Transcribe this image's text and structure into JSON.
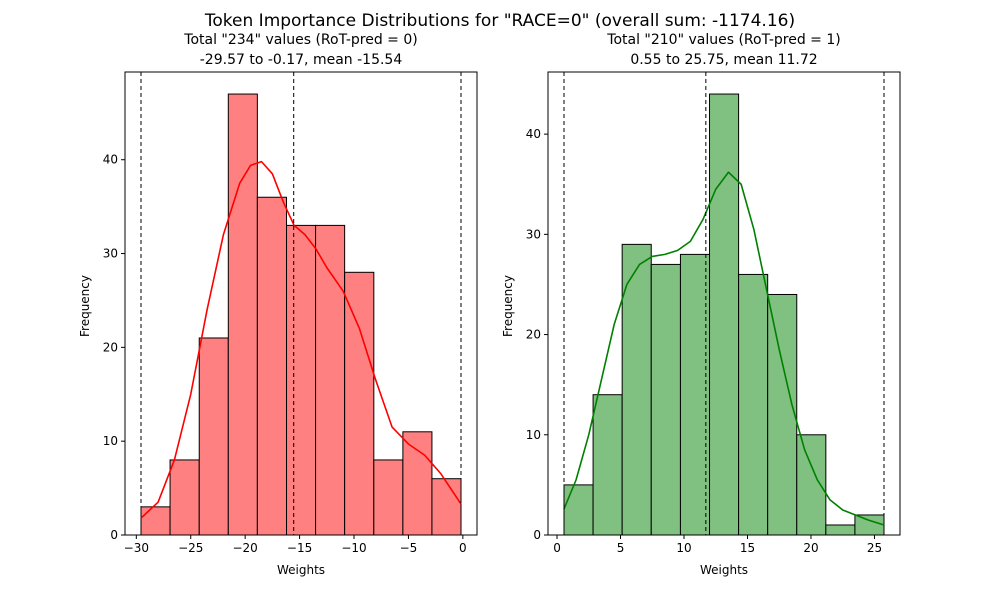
{
  "suptitle": "Token Importance Distributions for \"RACE=0\" (overall  sum: -1174.16)",
  "chart_data": [
    {
      "type": "bar",
      "subtype": "histogram-with-kde",
      "title_line1": "Total \"234\" values (RoT-pred = 0)",
      "title_line2": "-29.57 to -0.17, mean -15.54",
      "xlabel": "Weights",
      "ylabel": "Frequency",
      "xlim": [
        -31.04,
        1.3
      ],
      "ylim": [
        0,
        49.35
      ],
      "xticks": [
        -30,
        -25,
        -20,
        -15,
        -10,
        -5,
        0
      ],
      "yticks": [
        0,
        10,
        20,
        30,
        40
      ],
      "bar_color": "#ff8080",
      "kde_color": "#ff0000",
      "bins": [
        {
          "start": -29.57,
          "end": -26.9,
          "count": 3
        },
        {
          "start": -26.9,
          "end": -24.22,
          "count": 8
        },
        {
          "start": -24.22,
          "end": -21.55,
          "count": 21
        },
        {
          "start": -21.55,
          "end": -18.88,
          "count": 47
        },
        {
          "start": -18.88,
          "end": -16.2,
          "count": 36
        },
        {
          "start": -16.2,
          "end": -13.53,
          "count": 33
        },
        {
          "start": -13.53,
          "end": -10.86,
          "count": 33
        },
        {
          "start": -10.86,
          "end": -8.18,
          "count": 28
        },
        {
          "start": -8.18,
          "end": -5.51,
          "count": 8
        },
        {
          "start": -5.51,
          "end": -2.84,
          "count": 11
        },
        {
          "start": -2.84,
          "end": -0.17,
          "count": 6
        }
      ],
      "kde": [
        [
          -29.57,
          1.8
        ],
        [
          -28.0,
          3.5
        ],
        [
          -26.5,
          8.0
        ],
        [
          -25.0,
          15.0
        ],
        [
          -23.5,
          24.0
        ],
        [
          -22.0,
          32.0
        ],
        [
          -20.5,
          37.5
        ],
        [
          -19.5,
          39.4
        ],
        [
          -18.5,
          39.8
        ],
        [
          -17.5,
          38.5
        ],
        [
          -16.5,
          35.5
        ],
        [
          -15.5,
          33.0
        ],
        [
          -14.5,
          32.0
        ],
        [
          -13.5,
          30.5
        ],
        [
          -12.5,
          28.5
        ],
        [
          -11.0,
          26.0
        ],
        [
          -9.5,
          22.0
        ],
        [
          -8.0,
          16.5
        ],
        [
          -6.5,
          11.5
        ],
        [
          -5.0,
          9.7
        ],
        [
          -3.5,
          8.5
        ],
        [
          -2.0,
          6.5
        ],
        [
          -0.17,
          3.3
        ]
      ],
      "vlines": [
        -29.57,
        -15.54,
        -0.17
      ]
    },
    {
      "type": "bar",
      "subtype": "histogram-with-kde",
      "title_line1": "Total \"210\" values (RoT-pred = 1)",
      "title_line2": "0.55 to 25.75, mean 11.72",
      "xlabel": "Weights",
      "ylabel": "Frequency",
      "xlim": [
        -0.71,
        27.01
      ],
      "ylim": [
        0,
        46.2
      ],
      "xticks": [
        0,
        5,
        10,
        15,
        20,
        25
      ],
      "yticks": [
        0,
        10,
        20,
        30,
        40
      ],
      "bar_color": "#80c080",
      "kde_color": "#008000",
      "bins": [
        {
          "start": 0.55,
          "end": 2.84,
          "count": 5
        },
        {
          "start": 2.84,
          "end": 5.13,
          "count": 14
        },
        {
          "start": 5.13,
          "end": 7.42,
          "count": 29
        },
        {
          "start": 7.42,
          "end": 9.72,
          "count": 27
        },
        {
          "start": 9.72,
          "end": 12.01,
          "count": 28
        },
        {
          "start": 12.01,
          "end": 14.3,
          "count": 44
        },
        {
          "start": 14.3,
          "end": 16.59,
          "count": 26
        },
        {
          "start": 16.59,
          "end": 18.88,
          "count": 24
        },
        {
          "start": 18.88,
          "end": 21.17,
          "count": 10
        },
        {
          "start": 21.17,
          "end": 23.46,
          "count": 1
        },
        {
          "start": 23.46,
          "end": 25.75,
          "count": 2
        }
      ],
      "kde": [
        [
          0.55,
          2.6
        ],
        [
          1.5,
          5.5
        ],
        [
          2.5,
          10.0
        ],
        [
          3.5,
          15.5
        ],
        [
          4.5,
          21.0
        ],
        [
          5.5,
          25.0
        ],
        [
          6.5,
          27.0
        ],
        [
          7.5,
          27.8
        ],
        [
          8.5,
          28.0
        ],
        [
          9.5,
          28.4
        ],
        [
          10.5,
          29.3
        ],
        [
          11.5,
          31.5
        ],
        [
          12.5,
          34.5
        ],
        [
          13.5,
          36.2
        ],
        [
          14.5,
          35.0
        ],
        [
          15.5,
          30.5
        ],
        [
          16.5,
          24.5
        ],
        [
          17.5,
          18.5
        ],
        [
          18.5,
          13.0
        ],
        [
          19.5,
          8.5
        ],
        [
          20.5,
          5.5
        ],
        [
          21.5,
          3.5
        ],
        [
          22.5,
          2.5
        ],
        [
          23.5,
          2.0
        ],
        [
          24.5,
          1.5
        ],
        [
          25.75,
          1.0
        ]
      ],
      "vlines": [
        0.55,
        11.72,
        25.75
      ]
    }
  ]
}
